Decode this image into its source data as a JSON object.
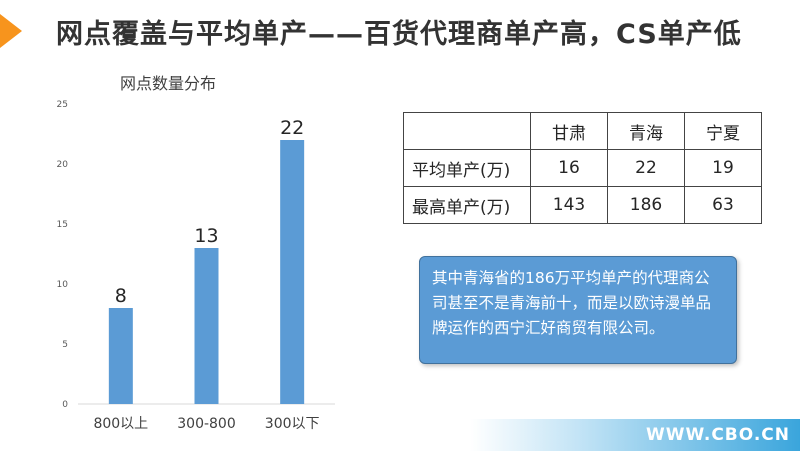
{
  "slide": {
    "title": "网点覆盖与平均单产——百货代理商单产高，CS单产低"
  },
  "chart_data": {
    "type": "bar",
    "title": "网点数量分布",
    "categories": [
      "800以上",
      "300-800",
      "300以下"
    ],
    "values": [
      8,
      13,
      22
    ],
    "ylim": [
      0,
      25
    ],
    "yticks": [
      0,
      5,
      10,
      15,
      20,
      25
    ],
    "xlabel": "",
    "ylabel": "",
    "grid": false,
    "bar_color": "#5b9bd5"
  },
  "table": {
    "columns": [
      "",
      "甘肃",
      "青海",
      "宁夏"
    ],
    "rows": [
      {
        "label": "平均单产(万)",
        "values": [
          "16",
          "22",
          "19"
        ]
      },
      {
        "label": "最高单产(万)",
        "values": [
          "143",
          "186",
          "63"
        ]
      }
    ]
  },
  "note": {
    "text": "其中青海省的186万平均单产的代理商公司甚至不是青海前十，而是以欧诗漫单品牌运作的西宁汇好商贸有限公司。",
    "color": "#5b9bd5"
  },
  "footer": {
    "text": "WWW.CBO.CN"
  },
  "colors": {
    "accent": "#f7941d",
    "footer_blue": "#3aa5dc"
  }
}
